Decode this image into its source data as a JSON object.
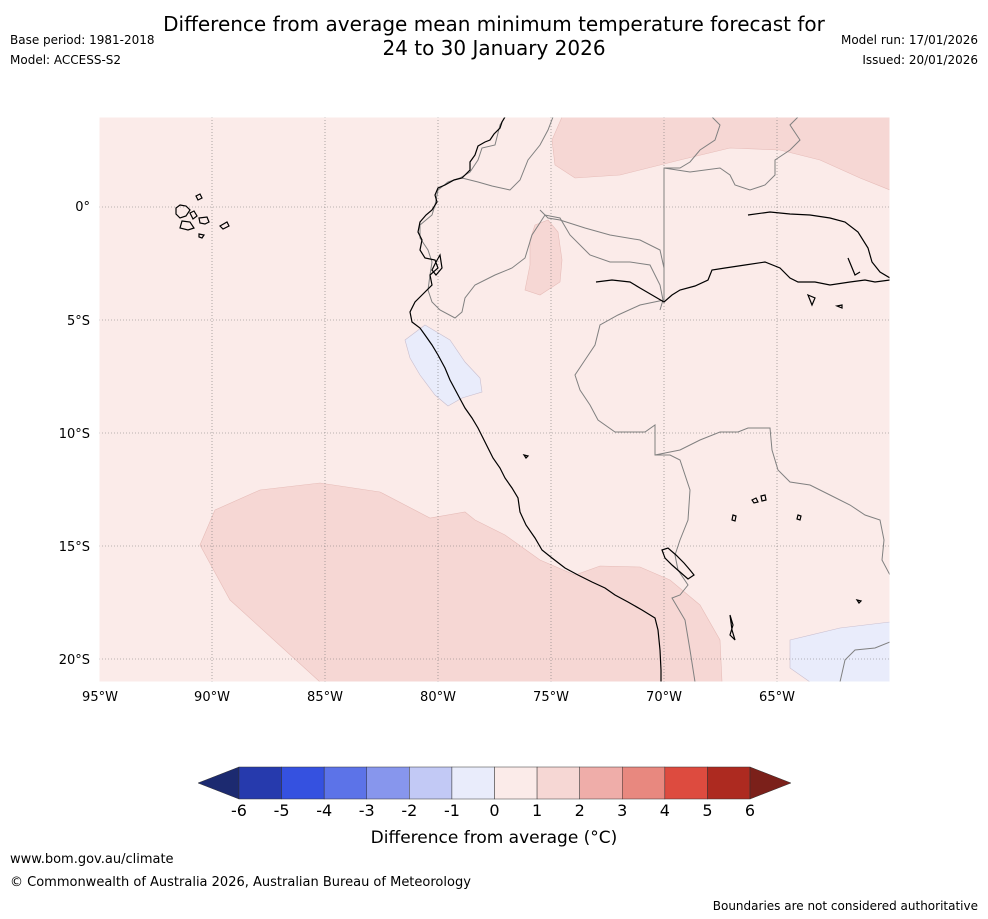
{
  "title_line1": "Difference from average mean minimum temperature forecast for",
  "title_line2": "24 to 30 January 2026",
  "base_period": "Base period: 1981-2018",
  "model": "Model: ACCESS-S2",
  "model_run": "Model run: 17/01/2026",
  "issued": "Issued: 20/01/2026",
  "map": {
    "lon_labels": [
      "95°W",
      "90°W",
      "85°W",
      "80°W",
      "75°W",
      "70°W",
      "65°W"
    ],
    "lat_labels": [
      "0°",
      "5°S",
      "10°S",
      "15°S",
      "20°S"
    ],
    "region_fill": "#fbebe9",
    "warm_fill": "#f6d7d4",
    "cool_fill": "#e9ecfb",
    "coast_color": "#000000",
    "border_color": "#808080"
  },
  "colorbar": {
    "ticks": [
      "-6",
      "-5",
      "-4",
      "-3",
      "-2",
      "-1",
      "0",
      "1",
      "2",
      "3",
      "4",
      "5",
      "6"
    ],
    "colors": [
      "#263aad",
      "#3551e0",
      "#5c73e8",
      "#8796ed",
      "#c2c9f5",
      "#e9ecfb",
      "#fbebe9",
      "#f6d7d4",
      "#efada9",
      "#e8887f",
      "#dd4b3f",
      "#ad2a20"
    ],
    "low_extend_color": "#1c2a70",
    "high_extend_color": "#7b201a",
    "label": "Difference from average (°C)"
  },
  "footer": {
    "url": "www.bom.gov.au/climate",
    "copyright": "© Commonwealth of Australia 2026, Australian Bureau of Meteorology",
    "disclaimer": "Boundaries are not considered authoritative"
  }
}
